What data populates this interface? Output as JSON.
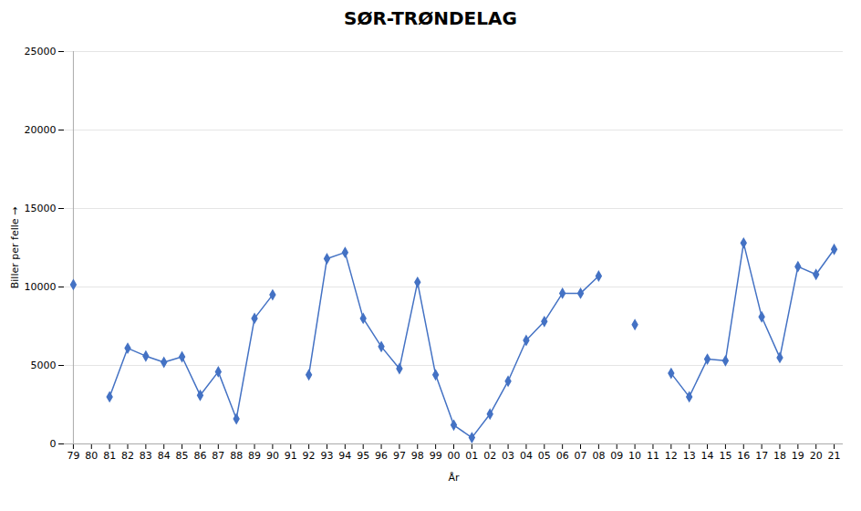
{
  "chart_data": {
    "type": "line",
    "title": "SØR-TRØNDELAG",
    "xlabel": "År",
    "ylabel": "Biller per felle",
    "categories": [
      "79",
      "80",
      "81",
      "82",
      "83",
      "84",
      "85",
      "86",
      "87",
      "88",
      "89",
      "90",
      "91",
      "92",
      "93",
      "94",
      "95",
      "96",
      "97",
      "98",
      "99",
      "00",
      "01",
      "02",
      "03",
      "04",
      "05",
      "06",
      "07",
      "08",
      "09",
      "10",
      "11",
      "12",
      "13",
      "14",
      "15",
      "16",
      "17",
      "18",
      "19",
      "20",
      "21"
    ],
    "values": [
      10150,
      null,
      3000,
      6100,
      5600,
      5200,
      5550,
      3100,
      4600,
      1600,
      8000,
      9500,
      null,
      4400,
      11800,
      12200,
      8000,
      6200,
      4800,
      10300,
      4400,
      1200,
      400,
      1900,
      4000,
      6600,
      7800,
      9600,
      9600,
      10700,
      null,
      7600,
      null,
      4500,
      3000,
      5400,
      5300,
      12800,
      8100,
      5500,
      11300,
      10800,
      12400
    ],
    "color": "#4472C4",
    "marker": "diamond",
    "ylim": [
      0,
      25000
    ],
    "yticks": [
      0,
      5000,
      10000,
      15000,
      20000,
      25000
    ],
    "grid": true
  }
}
